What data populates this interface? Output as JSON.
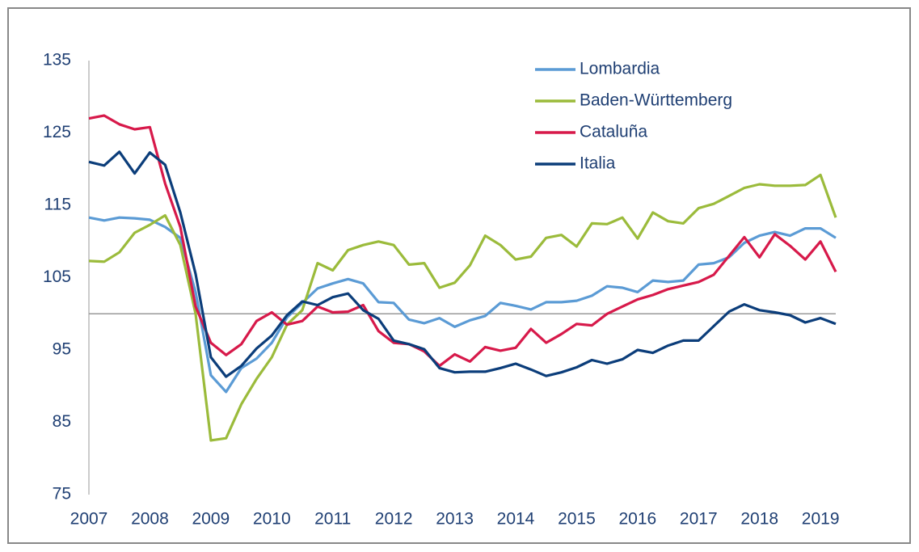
{
  "chart_data": {
    "type": "line",
    "categories": [
      "2007",
      null,
      null,
      null,
      "2008",
      null,
      null,
      null,
      "2009",
      null,
      null,
      null,
      "2010",
      null,
      null,
      null,
      "2011",
      null,
      null,
      null,
      "2012",
      null,
      null,
      null,
      "2013",
      null,
      null,
      null,
      "2014",
      null,
      null,
      null,
      "2015",
      null,
      null,
      null,
      "2016",
      null,
      null,
      null,
      "2017",
      null,
      null,
      null,
      "2018",
      null,
      null,
      null,
      "2019",
      null
    ],
    "series": [
      {
        "name": "Lombardia",
        "color": "#5b9bd5",
        "values": [
          113.3,
          112.9,
          113.3,
          113.2,
          113.0,
          112.0,
          110.5,
          103,
          91.5,
          89.2,
          92.5,
          93.8,
          96,
          99.5,
          101.5,
          103.5,
          104.2,
          104.8,
          104.2,
          101.6,
          101.5,
          99.2,
          98.7,
          99.4,
          98.2,
          99.1,
          99.7,
          101.5,
          101.1,
          100.6,
          101.6,
          101.6,
          101.8,
          102.5,
          103.8,
          103.6,
          103.0,
          104.6,
          104.4,
          104.6,
          106.8,
          107.0,
          107.8,
          109.8,
          110.8,
          111.3,
          110.8,
          111.8,
          111.8,
          110.5
        ]
      },
      {
        "name": "Baden-Württemberg",
        "color": "#9bbb3b",
        "values": [
          107.3,
          107.2,
          108.5,
          111.2,
          112.3,
          113.6,
          109.5,
          100,
          82.5,
          82.8,
          87.5,
          91,
          94,
          98.5,
          100.5,
          107,
          106,
          108.8,
          109.5,
          110,
          109.5,
          106.8,
          107,
          103.6,
          104.3,
          106.7,
          110.8,
          109.5,
          107.5,
          107.9,
          110.5,
          110.9,
          109.3,
          112.5,
          112.4,
          113.3,
          110.4,
          114,
          112.8,
          112.5,
          114.6,
          115.2,
          116.3,
          117.4,
          117.9,
          117.7,
          117.7,
          117.8,
          119.2,
          113.3
        ]
      },
      {
        "name": "Cataluña",
        "color": "#d7194a",
        "values": [
          127,
          127.4,
          126.2,
          125.5,
          125.8,
          118,
          112,
          101,
          96,
          94.3,
          95.8,
          99,
          100.2,
          98.5,
          99,
          101,
          100.2,
          100.3,
          101.2,
          97.6,
          96,
          95.8,
          94.8,
          92.8,
          94.4,
          93.4,
          95.4,
          94.9,
          95.3,
          97.9,
          96,
          97.2,
          98.6,
          98.4,
          100,
          101,
          102,
          102.6,
          103.4,
          103.9,
          104.4,
          105.4,
          108,
          110.6,
          107.8,
          111,
          109.4,
          107.5,
          110,
          105.8
        ]
      },
      {
        "name": "Italia",
        "color": "#0b3d7a",
        "values": [
          121,
          120.5,
          122.4,
          119.4,
          122.3,
          120.6,
          114,
          105.5,
          94,
          91.3,
          92.8,
          95.2,
          97,
          99.8,
          101.7,
          101.2,
          102.3,
          102.8,
          100.5,
          99.3,
          96.3,
          95.8,
          95.1,
          92.5,
          91.9,
          92,
          92,
          92.5,
          93.1,
          92.3,
          91.4,
          91.9,
          92.6,
          93.6,
          93.1,
          93.7,
          95,
          94.6,
          95.6,
          96.3,
          96.3,
          98.3,
          100.3,
          101.3,
          100.5,
          100.2,
          99.8,
          98.8,
          99.4,
          98.6
        ]
      }
    ],
    "ylim": [
      75,
      135
    ],
    "yticks": [
      75,
      85,
      95,
      105,
      115,
      125,
      135
    ],
    "grid": false,
    "reference_line": 100,
    "legend": "top-right"
  }
}
